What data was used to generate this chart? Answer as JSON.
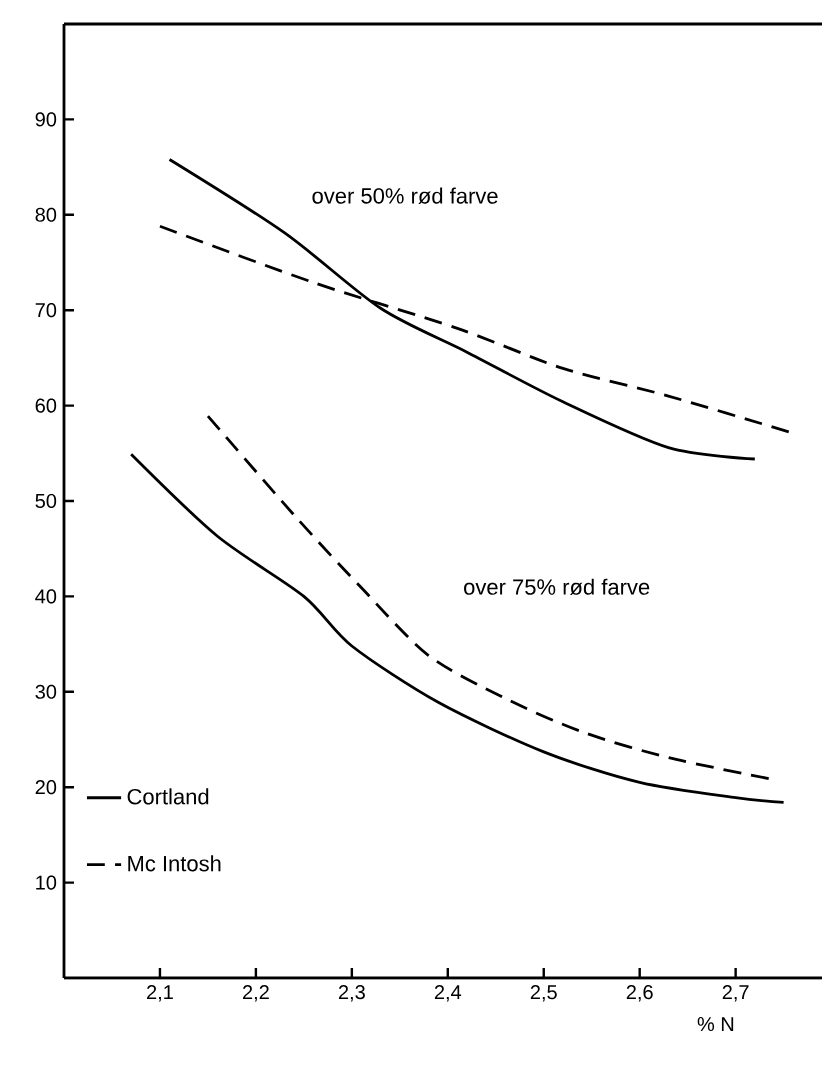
{
  "chart_data": {
    "type": "line",
    "xlabel": "% N",
    "xlim": [
      2.0,
      2.79
    ],
    "ylim": [
      0,
      100
    ],
    "xticks": [
      {
        "value": 2.1,
        "label": "2,1"
      },
      {
        "value": 2.2,
        "label": "2,2"
      },
      {
        "value": 2.3,
        "label": "2,3"
      },
      {
        "value": 2.4,
        "label": "2,4"
      },
      {
        "value": 2.5,
        "label": "2,5"
      },
      {
        "value": 2.6,
        "label": "2,6"
      },
      {
        "value": 2.7,
        "label": "2,7"
      }
    ],
    "yticks": [
      10,
      20,
      30,
      40,
      50,
      60,
      70,
      80,
      90
    ],
    "grid": false,
    "legend": "bottom left",
    "marker": "none",
    "series": [
      {
        "name": "Cortland",
        "color": "#000000",
        "line_style": "solid",
        "x": [
          2.11,
          2.23,
          2.33,
          2.42,
          2.52,
          2.63,
          2.72
        ],
        "values": [
          85.8,
          78.1,
          70.2,
          65.6,
          60.4,
          55.6,
          54.4
        ]
      },
      {
        "name": "Mc Intosh",
        "color": "#000000",
        "line_style": "dashed",
        "x": [
          2.1,
          2.26,
          2.41,
          2.52,
          2.63,
          2.76
        ],
        "values": [
          78.8,
          72.9,
          68.1,
          63.9,
          61.0,
          57.1
        ]
      },
      {
        "color": "#000000",
        "line_style": "solid",
        "x": [
          2.07,
          2.16,
          2.25,
          2.3,
          2.39,
          2.5,
          2.6,
          2.7,
          2.75
        ],
        "values": [
          54.9,
          46.3,
          40.0,
          34.8,
          28.9,
          23.7,
          20.5,
          18.9,
          18.4
        ]
      },
      {
        "color": "#000000",
        "line_style": "dashed",
        "x": [
          2.15,
          2.24,
          2.31,
          2.38,
          2.46,
          2.54,
          2.63,
          2.74
        ],
        "values": [
          58.9,
          48.5,
          40.9,
          33.8,
          29.3,
          25.8,
          23.1,
          20.8
        ]
      }
    ],
    "annotations": [
      "over 50% rød farve",
      "over 75% rød farve"
    ]
  }
}
